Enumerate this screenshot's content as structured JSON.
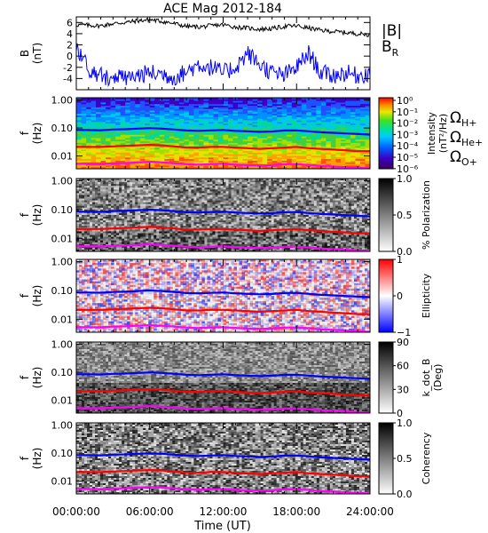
{
  "title": "ACE Mag 2012-184",
  "xaxis": {
    "label": "Time (UT)",
    "ticks": [
      "00:00:00",
      "06:00:00",
      "12:00:00",
      "18:00:00",
      "24:00:00"
    ],
    "range_hours": [
      0,
      24
    ]
  },
  "colors": {
    "B": "#000000",
    "BR": "#0000ff",
    "OmegaH": "#0000ff",
    "OmegaHe": "#ff0000",
    "OmegaO": "#ff00ff"
  },
  "chart_data": [
    {
      "type": "line",
      "ylabel": "B\n(nT)",
      "yticks": [
        "6",
        "4",
        "2",
        "0",
        "-2",
        "-4"
      ],
      "ylim": [
        -6,
        7
      ],
      "legend": [
        {
          "key": "B",
          "label": "|B|",
          "color": "#000000"
        },
        {
          "key": "BR",
          "label": "B",
          "sub": "R",
          "color": "#0000ff"
        }
      ],
      "series": [
        {
          "name": "|B|",
          "x": [
            0,
            1,
            2,
            3,
            4,
            5,
            6,
            7,
            8,
            9,
            10,
            11,
            12,
            13,
            14,
            15,
            16,
            17,
            18,
            19,
            20,
            21,
            22,
            23,
            24
          ],
          "y": [
            5.6,
            5.5,
            5.4,
            5.8,
            6.0,
            6.3,
            6.5,
            6.2,
            5.8,
            5.3,
            5.2,
            5.4,
            5.6,
            5.2,
            5.0,
            4.8,
            4.9,
            5.3,
            5.4,
            5.0,
            4.6,
            4.4,
            4.2,
            4.0,
            3.8
          ]
        },
        {
          "name": "B_R",
          "x": [
            0,
            1,
            2,
            3,
            4,
            5,
            6,
            7,
            8,
            9,
            10,
            11,
            12,
            13,
            14,
            15,
            16,
            17,
            18,
            19,
            20,
            21,
            22,
            23,
            24
          ],
          "y": [
            2.0,
            -2.5,
            -3.5,
            -3.8,
            -4.0,
            -3.5,
            -3.0,
            -3.2,
            -3.8,
            -2.8,
            -1.5,
            -2.0,
            -3.0,
            -2.0,
            0.5,
            -1.5,
            -3.0,
            -3.5,
            -2.0,
            0.5,
            -3.0,
            -3.5,
            -3.0,
            -3.5,
            -3.0
          ]
        }
      ]
    },
    {
      "type": "heatmap",
      "name": "power",
      "ylabel": "f\n(Hz)",
      "yticks": [
        "1.00",
        "0.10",
        "0.01"
      ],
      "ylim": [
        0.0035,
        1.2
      ],
      "yscale": "log",
      "colorbar": {
        "label": "Intensity\n(nT²/Hz)",
        "ticks": [
          "10⁰",
          "10⁻¹",
          "10⁻²",
          "10⁻³",
          "10⁻⁴",
          "10⁻⁵",
          "10⁻⁶"
        ]
      },
      "legend": [
        {
          "label": "Ω",
          "sub": "H+",
          "color": "#0000ff"
        },
        {
          "label": "Ω",
          "sub": "He+",
          "color": "#ff0000"
        },
        {
          "label": "Ω",
          "sub": "O+",
          "color": "#ff00ff"
        }
      ]
    },
    {
      "type": "heatmap",
      "name": "polarization",
      "ylabel": "f\n(Hz)",
      "yticks": [
        "1.00",
        "0.10",
        "0.01"
      ],
      "yscale": "log",
      "colorbar": {
        "label": "% Polarization",
        "ticks": [
          "1.0",
          "0.5",
          "0.0"
        ]
      }
    },
    {
      "type": "heatmap",
      "name": "ellipticity",
      "ylabel": "f\n(Hz)",
      "yticks": [
        "1.00",
        "0.10",
        "0.01"
      ],
      "yscale": "log",
      "colorbar": {
        "label": "Ellipticity",
        "ticks": [
          "1",
          "0",
          "−1"
        ]
      }
    },
    {
      "type": "heatmap",
      "name": "kdotb",
      "ylabel": "f\n(Hz)",
      "yticks": [
        "1.00",
        "0.10",
        "0.01"
      ],
      "yscale": "log",
      "colorbar": {
        "label": "k_dot_B\n(Deg)",
        "ticks": [
          "90",
          "60",
          "30",
          "0"
        ]
      }
    },
    {
      "type": "heatmap",
      "name": "coherency",
      "ylabel": "f\n(Hz)",
      "yticks": [
        "1.00",
        "0.10",
        "0.01"
      ],
      "yscale": "log",
      "colorbar": {
        "label": "Coherency",
        "ticks": [
          "1.0",
          "0.5",
          "0.0"
        ]
      }
    }
  ],
  "gyrofrequencies": {
    "x": [
      0,
      1,
      2,
      3,
      4,
      5,
      6,
      7,
      8,
      9,
      10,
      11,
      12,
      13,
      14,
      15,
      16,
      17,
      18,
      19,
      20,
      21,
      22,
      23,
      24
    ],
    "H+": [
      0.085,
      0.084,
      0.083,
      0.088,
      0.09,
      0.095,
      0.099,
      0.095,
      0.088,
      0.081,
      0.079,
      0.082,
      0.085,
      0.079,
      0.076,
      0.073,
      0.075,
      0.081,
      0.082,
      0.076,
      0.07,
      0.067,
      0.064,
      0.061,
      0.058
    ],
    "He+": [
      0.021,
      0.021,
      0.021,
      0.022,
      0.023,
      0.024,
      0.025,
      0.024,
      0.022,
      0.02,
      0.02,
      0.021,
      0.021,
      0.02,
      0.019,
      0.018,
      0.019,
      0.02,
      0.021,
      0.019,
      0.018,
      0.017,
      0.016,
      0.015,
      0.015
    ],
    "O+": [
      0.0053,
      0.0052,
      0.0052,
      0.0055,
      0.0056,
      0.0059,
      0.0062,
      0.0059,
      0.0055,
      0.0051,
      0.0049,
      0.0051,
      0.0053,
      0.0049,
      0.0047,
      0.0046,
      0.0047,
      0.0051,
      0.0051,
      0.0048,
      0.0044,
      0.0042,
      0.004,
      0.0038,
      0.0036
    ]
  }
}
